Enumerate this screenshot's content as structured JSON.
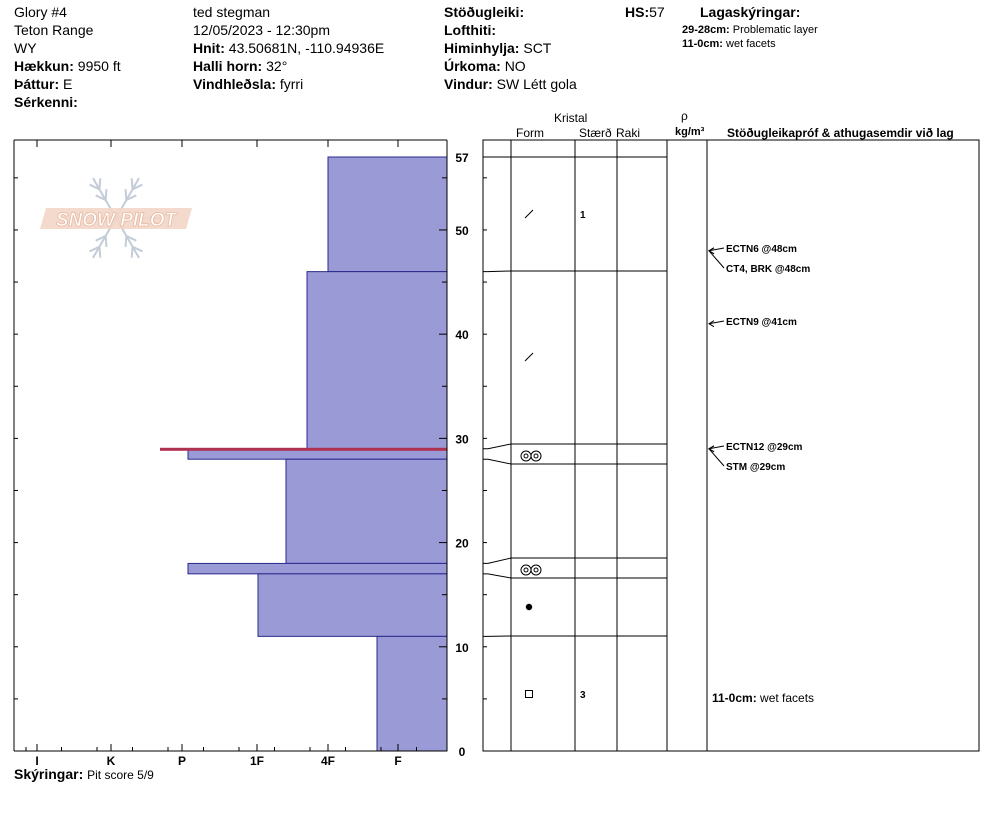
{
  "header": {
    "pit_name": "Glory #4",
    "range": "Teton Range",
    "state": "WY",
    "elevation_label": "Hækkun:",
    "elevation_value": "9950 ft",
    "aspect_label": "Þáttur:",
    "aspect_value": "E",
    "features_label": "Sérkenni:",
    "observer": "ted stegman",
    "datetime": "12/05/2023 - 12:30pm",
    "coords_label": "Hnit:",
    "coords_value": "43.50681N, -110.94936E",
    "slope_label": "Halli horn:",
    "slope_value": "32°",
    "wind_loading_label": "Vindhleðsla:",
    "wind_loading_value": "fyrri",
    "stability_label": "Stöðugleiki:",
    "air_temp_label": "Lofthiti:",
    "sky_label": "Himinhylja:",
    "sky_value": "SCT",
    "precip_label": "Úrkoma:",
    "precip_value": "NO",
    "wind_label": "Vindur:",
    "wind_value": "SW Létt gola",
    "hs_label": "HS:",
    "hs_value": "57",
    "layer_notes_title": "Lagaskýringar:",
    "layer_notes": [
      {
        "range": "29-28cm:",
        "text": "Problematic layer"
      },
      {
        "range": "11-0cm:",
        "text": "wet facets"
      }
    ]
  },
  "logo_text": "SNOW PILOT",
  "columns": {
    "crystal": "Kristal",
    "form": "Form",
    "size": "Stærð",
    "moisture": "Raki",
    "density_symbol": "ρ",
    "density_unit": "kg/m³",
    "tests": "Stöðugleikapróf & athugasemdir við lag"
  },
  "footer": {
    "comments_label": "Skýringar:",
    "comments_value": "Pit score 5/9"
  },
  "colors": {
    "layer_fill": "#9a9ad6",
    "layer_stroke": "#2a2a8a",
    "problem_layer": "#b03050"
  },
  "chart_data": {
    "type": "bar",
    "title": "",
    "xlabel": "",
    "ylabel": "",
    "ylim": [
      0,
      57
    ],
    "y_ticks": [
      "0",
      "10",
      "20",
      "30",
      "40",
      "50",
      "57"
    ],
    "hardness_scale": [
      "F",
      "4F",
      "1F",
      "P",
      "K",
      "I"
    ],
    "layers": [
      {
        "top": 57,
        "bottom": 46,
        "hardness": "1F-"
      },
      {
        "top": 46,
        "bottom": 29,
        "hardness": "1F"
      },
      {
        "top": 29,
        "bottom": 28,
        "hardness": "P-"
      },
      {
        "top": 28,
        "bottom": 18,
        "hardness": "1F+"
      },
      {
        "top": 18,
        "bottom": 17,
        "hardness": "P-"
      },
      {
        "top": 17,
        "bottom": 11,
        "hardness": "P+"
      },
      {
        "top": 11,
        "bottom": 0,
        "hardness": "4F"
      }
    ],
    "hardness_values": [
      1.7,
      2.0,
      3.7,
      2.3,
      3.7,
      2.7,
      1.0
    ],
    "problem_layer": {
      "top": 29,
      "bottom": 28
    },
    "grain_forms": [
      {
        "depth": 51.5,
        "form": "decomposing",
        "size": "1"
      },
      {
        "depth": 37.5,
        "form": "decomposing",
        "size": ""
      },
      {
        "depth": 28.5,
        "form": "melt-freeze",
        "size": ""
      },
      {
        "depth": 17.5,
        "form": "melt-freeze",
        "size": ""
      },
      {
        "depth": 14,
        "form": "graupel",
        "size": ""
      },
      {
        "depth": 5.5,
        "form": "facets",
        "size": "3"
      }
    ],
    "tests": [
      {
        "depth": 48,
        "label": "ECTN6 @48cm"
      },
      {
        "depth": 48,
        "label": "CT4, BRK @48cm"
      },
      {
        "depth": 41,
        "label": "ECTN9 @41cm"
      },
      {
        "depth": 29,
        "label": "ECTN12 @29cm"
      },
      {
        "depth": 29,
        "label": "STM @29cm"
      }
    ],
    "layer_comments": [
      {
        "range": "11-0cm:",
        "text": "wet facets"
      }
    ]
  }
}
